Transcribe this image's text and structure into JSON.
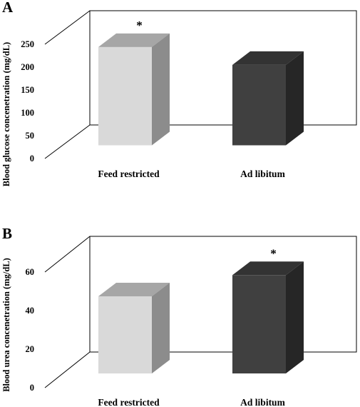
{
  "colors": {
    "feed_front": "#d9d9d9",
    "feed_top": "#a6a6a6",
    "feed_side": "#8c8c8c",
    "adlib_front": "#404040",
    "adlib_top": "#333333",
    "adlib_side": "#262626",
    "axis": "#000000"
  },
  "chart_data": [
    {
      "type": "bar",
      "panel_label": "A",
      "ylabel": "Blood glucose concenetration (mg/dL)",
      "categories": [
        "Feed restricted",
        "Ad libitum"
      ],
      "values": [
        215,
        176
      ],
      "ylim": [
        0,
        250
      ],
      "yticks": [
        0,
        50,
        100,
        150,
        200,
        250
      ],
      "significance": [
        "*",
        ""
      ],
      "grid": false,
      "style": "3d-column"
    },
    {
      "type": "bar",
      "panel_label": "B",
      "ylabel": "Blood urea concenetration (mg/dL)",
      "categories": [
        "Feed restricted",
        "Ad libitum"
      ],
      "values": [
        40,
        51
      ],
      "ylim": [
        0,
        60
      ],
      "yticks": [
        0,
        20,
        40,
        60
      ],
      "significance": [
        "",
        "*"
      ],
      "grid": false,
      "style": "3d-column"
    }
  ]
}
